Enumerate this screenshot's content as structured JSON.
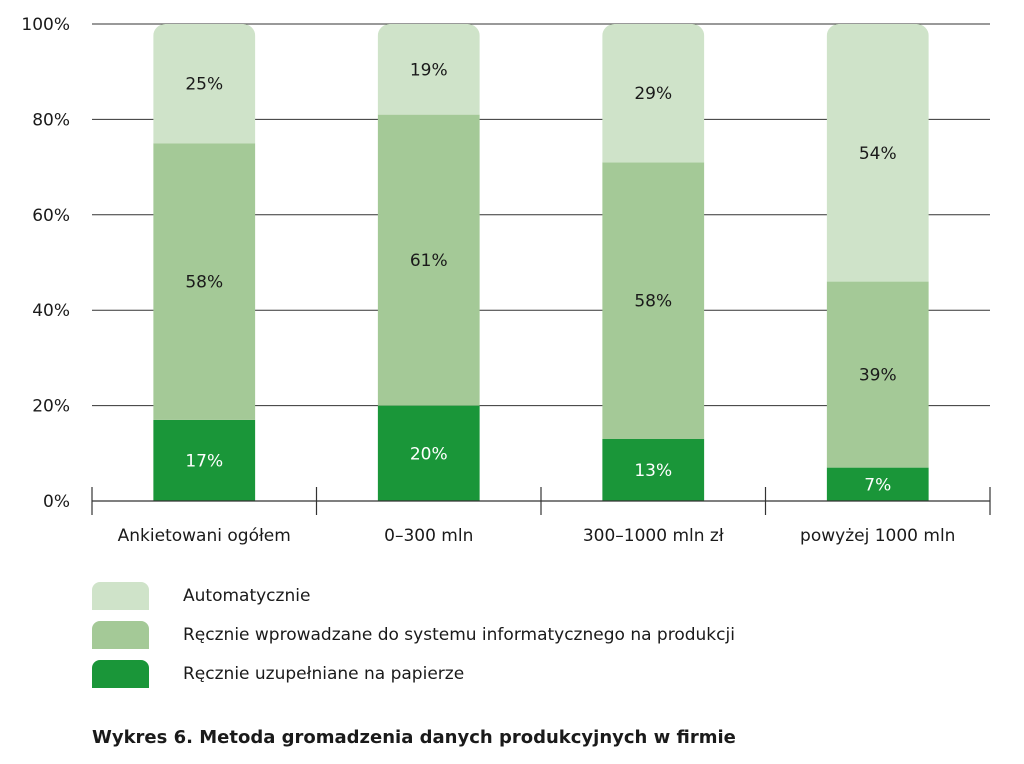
{
  "chart_data": {
    "type": "bar",
    "stacked": true,
    "categories": [
      "Ankietowani ogółem",
      "0–300 mln",
      "300–1000 mln zł",
      "powyżej 1000 mln"
    ],
    "series": [
      {
        "name": "Ręcznie uzupełniane na papierze",
        "values": [
          17,
          20,
          13,
          7
        ],
        "labels": [
          "17%",
          "20%",
          "13%",
          "7%"
        ],
        "color": "#1a9639",
        "text_color": "#ffffff"
      },
      {
        "name": "Ręcznie wprowadzane do systemu informatycznego na produkcji",
        "values": [
          58,
          61,
          58,
          39
        ],
        "labels": [
          "58%",
          "61%",
          "58%",
          "39%"
        ],
        "color": "#a4c997",
        "text_color": "#1a1a1a"
      },
      {
        "name": "Automatycznie",
        "values": [
          25,
          19,
          29,
          54
        ],
        "labels": [
          "25%",
          "19%",
          "29%",
          "54%"
        ],
        "color": "#cfe3c9",
        "text_color": "#1a1a1a"
      }
    ],
    "legend_order": [
      2,
      1,
      0
    ],
    "legend_placement": "bottom-left",
    "ylim": [
      0,
      100
    ],
    "yticks": [
      0,
      20,
      40,
      60,
      80,
      100
    ],
    "ytick_labels": [
      "0%",
      "20%",
      "40%",
      "60%",
      "80%",
      "100%"
    ],
    "grid": true,
    "title": "",
    "xlabel": "",
    "ylabel": ""
  },
  "caption": "Wykres 6. Metoda gromadzenia danych produkcyjnych w firmie"
}
